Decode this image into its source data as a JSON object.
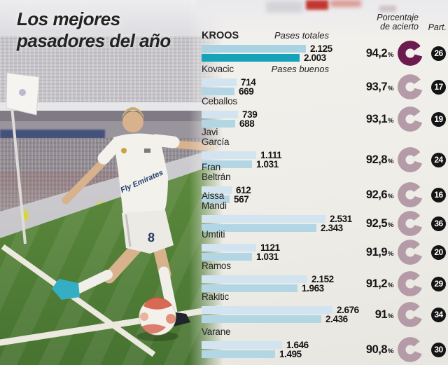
{
  "title": {
    "line1": "Los mejores",
    "line2": "pasadores del año"
  },
  "labels": {
    "accuracy_header_lines": [
      "Porcentaje",
      "de acierto"
    ],
    "participation_header": "Part.",
    "series": {
      "totales": "Pases totales",
      "buenos": "Pases buenos"
    },
    "percent_symbol": "%"
  },
  "photo": {
    "jersey_text": "Fly Emirates",
    "shorts_number": "8"
  },
  "colors": {
    "bar_total": "#d1e4ef",
    "bar_good": "#b3d6e5",
    "bar_total_highlight": "#a9d2e3",
    "bar_good_highlight": "#16a2b9",
    "donut": "#b59ba7",
    "donut_highlight": "#6d1b4e",
    "badge_bg": "#141414",
    "badge_text": "#ffffff"
  },
  "chart_data": {
    "type": "bar",
    "orientation": "horizontal",
    "title": "Los mejores pasadores del año",
    "series_names": [
      "Pases totales",
      "Pases buenos"
    ],
    "columns": [
      "Porcentaje de acierto",
      "Part."
    ],
    "players": [
      {
        "name_lines": [
          "KROOS"
        ],
        "highlight": true,
        "pases_totales": 2125,
        "pases_totales_label": "2.125",
        "pases_buenos": 2003,
        "pases_buenos_label": "2.003",
        "acierto_pct": 94.2,
        "acierto_label": "94,2",
        "partidos": 26
      },
      {
        "name_lines": [
          "Kovacic"
        ],
        "highlight": false,
        "pases_totales": 714,
        "pases_totales_label": "714",
        "pases_buenos": 669,
        "pases_buenos_label": "669",
        "acierto_pct": 93.7,
        "acierto_label": "93,7",
        "partidos": 17
      },
      {
        "name_lines": [
          "Ceballos"
        ],
        "highlight": false,
        "pases_totales": 739,
        "pases_totales_label": "739",
        "pases_buenos": 688,
        "pases_buenos_label": "688",
        "acierto_pct": 93.1,
        "acierto_label": "93,1",
        "partidos": 19
      },
      {
        "name_lines": [
          "Javi",
          "García"
        ],
        "highlight": false,
        "pases_totales": 1111,
        "pases_totales_label": "1.111",
        "pases_buenos": 1031,
        "pases_buenos_label": "1.031",
        "acierto_pct": 92.8,
        "acierto_label": "92,8",
        "partidos": 24
      },
      {
        "name_lines": [
          "Fran",
          "Beltrán"
        ],
        "highlight": false,
        "pases_totales": 612,
        "pases_totales_label": "612",
        "pases_buenos": 567,
        "pases_buenos_label": "567",
        "acierto_pct": 92.6,
        "acierto_label": "92,6",
        "partidos": 16
      },
      {
        "name_lines": [
          "Aissa",
          "Mandi"
        ],
        "highlight": false,
        "pases_totales": 2531,
        "pases_totales_label": "2.531",
        "pases_buenos": 2343,
        "pases_buenos_label": "2.343",
        "acierto_pct": 92.5,
        "acierto_label": "92,5",
        "partidos": 36
      },
      {
        "name_lines": [
          "Umtiti"
        ],
        "highlight": false,
        "pases_totales": 1121,
        "pases_totales_label": "1121",
        "pases_buenos": 1031,
        "pases_buenos_label": "1.031",
        "acierto_pct": 91.9,
        "acierto_label": "91,9",
        "partidos": 20
      },
      {
        "name_lines": [
          "Ramos"
        ],
        "highlight": false,
        "pases_totales": 2152,
        "pases_totales_label": "2.152",
        "pases_buenos": 1963,
        "pases_buenos_label": "1.963",
        "acierto_pct": 91.2,
        "acierto_label": "91,2",
        "partidos": 29
      },
      {
        "name_lines": [
          "Rakitic"
        ],
        "highlight": false,
        "pases_totales": 2676,
        "pases_totales_label": "2.676",
        "pases_buenos": 2436,
        "pases_buenos_label": "2.436",
        "acierto_pct": 91.0,
        "acierto_label": "91",
        "partidos": 34
      },
      {
        "name_lines": [
          "Varane"
        ],
        "highlight": false,
        "pases_totales": 1646,
        "pases_totales_label": "1.646",
        "pases_buenos": 1495,
        "pases_buenos_label": "1.495",
        "acierto_pct": 90.8,
        "acierto_label": "90,8",
        "partidos": 30
      }
    ]
  }
}
